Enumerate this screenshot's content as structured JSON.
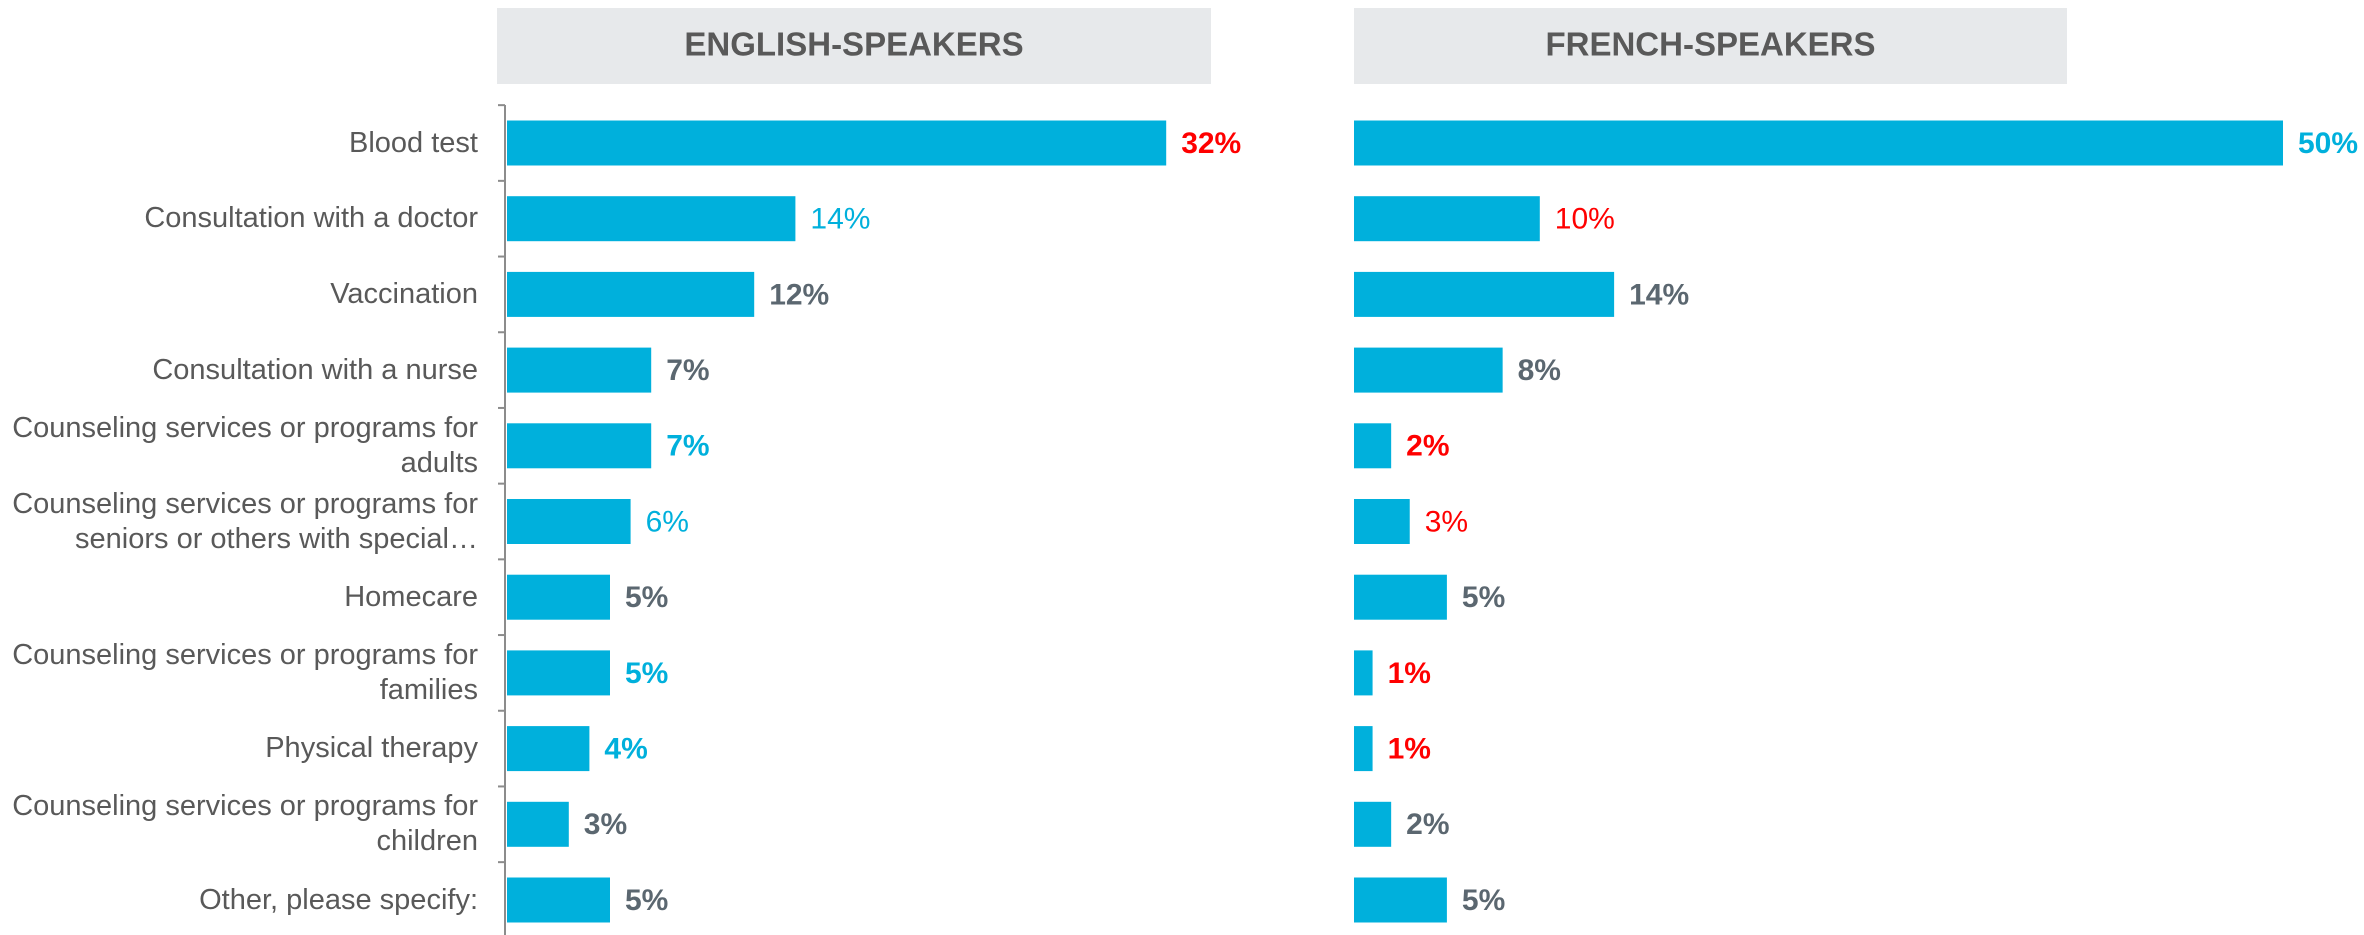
{
  "chart_data": [
    {
      "type": "bar",
      "orientation": "horizontal",
      "title": "ENGLISH-SPEAKERS",
      "categories": [
        "Blood test",
        "Consultation with a doctor",
        "Vaccination",
        "Consultation with a nurse",
        "Counseling services or programs for adults",
        "Counseling services or programs for seniors or others with special…",
        "Homecare",
        "Counseling services or programs for families",
        "Physical therapy",
        "Counseling services or programs for children",
        "Other, please specify:"
      ],
      "values": [
        32,
        14,
        12,
        7,
        7,
        6,
        5,
        5,
        4,
        3,
        5
      ],
      "value_labels": [
        "32%",
        "14%",
        "12%",
        "7%",
        "7%",
        "6%",
        "5%",
        "5%",
        "4%",
        "3%",
        "5%"
      ],
      "label_colors": [
        "#ff0000",
        "#00b0dc",
        "#5b6770",
        "#5b6770",
        "#00b0dc",
        "#00b0dc",
        "#5b6770",
        "#00b0dc",
        "#00b0dc",
        "#5b6770",
        "#5b6770"
      ],
      "label_bold": [
        true,
        false,
        true,
        true,
        true,
        false,
        true,
        true,
        true,
        true,
        true
      ],
      "color": "#00b0dc",
      "xlim": [
        0,
        35
      ]
    },
    {
      "type": "bar",
      "orientation": "horizontal",
      "title": "FRENCH-SPEAKERS",
      "values": [
        50,
        10,
        14,
        8,
        2,
        3,
        5,
        1,
        1,
        2,
        5
      ],
      "value_labels": [
        "50%",
        "10%",
        "14%",
        "8%",
        "2%",
        "3%",
        "5%",
        "1%",
        "1%",
        "2%",
        "5%"
      ],
      "label_colors": [
        "#00b0dc",
        "#ff0000",
        "#5b6770",
        "#5b6770",
        "#ff0000",
        "#ff0000",
        "#5b6770",
        "#ff0000",
        "#ff0000",
        "#5b6770",
        "#5b6770"
      ],
      "label_bold": [
        true,
        false,
        true,
        true,
        true,
        false,
        true,
        true,
        true,
        true,
        true
      ],
      "color": "#00b0dc",
      "xlim": [
        0,
        50
      ]
    }
  ]
}
